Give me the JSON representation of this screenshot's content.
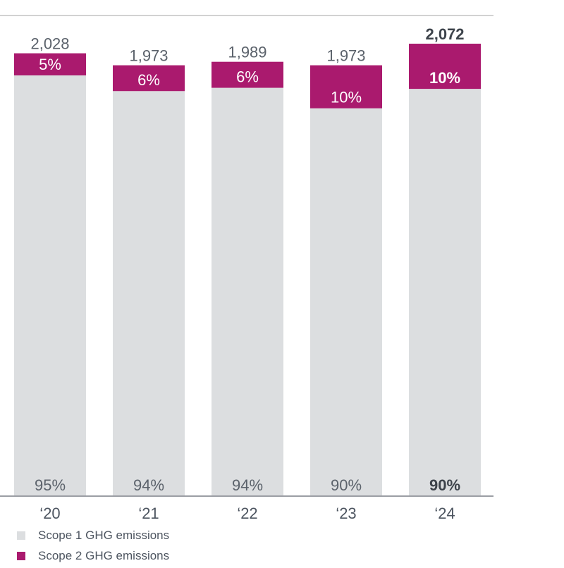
{
  "chart_data": {
    "type": "bar",
    "stacked": true,
    "title": "",
    "xlabel": "",
    "ylabel": "",
    "ylim": [
      0,
      2072
    ],
    "grid": false,
    "legend_position": "bottom-left",
    "categories": [
      "‘20",
      "‘21",
      "‘22",
      "‘23",
      "‘24"
    ],
    "totals": [
      "2,028",
      "1,973",
      "1,989",
      "1,973",
      "2,072"
    ],
    "total_values": [
      2028,
      1973,
      1989,
      1973,
      2072
    ],
    "highlight_index": 4,
    "series": [
      {
        "name": "Scope 1 GHG emissions",
        "color": "#dcdee0",
        "percent_values": [
          95,
          94,
          94,
          90,
          90
        ],
        "labels": [
          "95%",
          "94%",
          "94%",
          "90%",
          "90%"
        ]
      },
      {
        "name": "Scope 2 GHG emissions",
        "color": "#aa1a6e",
        "percent_values": [
          5,
          6,
          6,
          10,
          10
        ],
        "labels": [
          "5%",
          "6%",
          "6%",
          "10%",
          "10%"
        ]
      }
    ]
  }
}
